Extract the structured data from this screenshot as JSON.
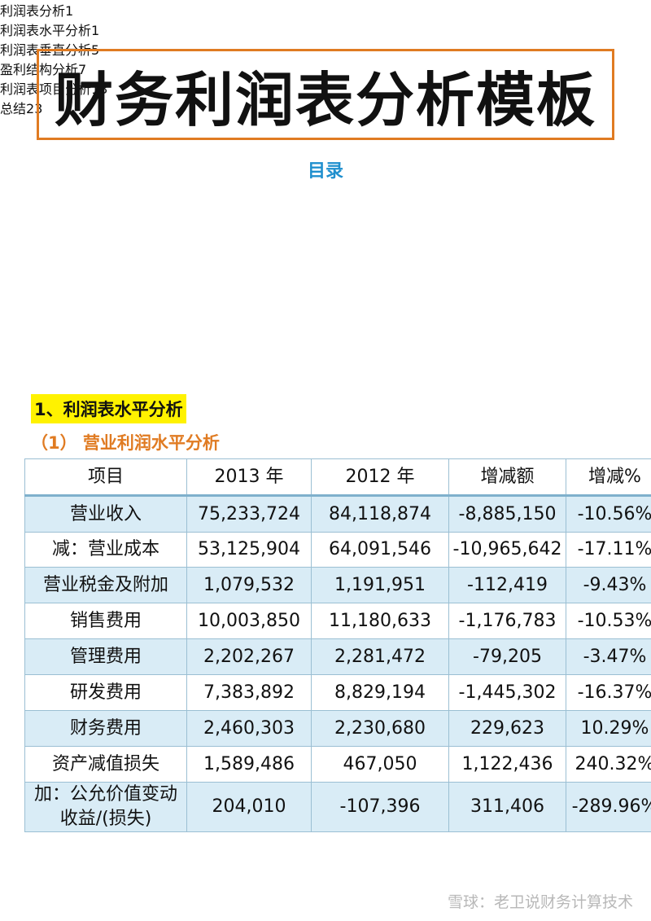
{
  "title": "财务利润表分析模板",
  "toc": {
    "heading": "目录",
    "items": [
      {
        "label": "利润表分析",
        "page": 1
      },
      {
        "label": "利润表水平分析",
        "page": 1
      },
      {
        "label": "利润表垂直分析",
        "page": 5
      },
      {
        "label": "盈利结构分析",
        "page": 7
      },
      {
        "label": "利润表项目分析",
        "page": 13
      },
      {
        "label": "总结",
        "page": 23
      }
    ]
  },
  "section": {
    "heading": "1、利润表水平分析",
    "subheading": "（1）  营业利润水平分析"
  },
  "table": {
    "header": [
      "项目",
      "2013 年",
      "2012 年",
      "增减额",
      "增减%"
    ],
    "rows": [
      [
        "营业收入",
        "75,233,724",
        "84,118,874",
        "-8,885,150",
        "-10.56%"
      ],
      [
        "减：营业成本",
        "53,125,904",
        "64,091,546",
        "-10,965,642",
        "-17.11%"
      ],
      [
        "营业税金及附加",
        "1,079,532",
        "1,191,951",
        "-112,419",
        "-9.43%"
      ],
      [
        "销售费用",
        "10,003,850",
        "11,180,633",
        "-1,176,783",
        "-10.53%"
      ],
      [
        "管理费用",
        "2,202,267",
        "2,281,472",
        "-79,205",
        "-3.47%"
      ],
      [
        "研发费用",
        "7,383,892",
        "8,829,194",
        "-1,445,302",
        "-16.37%"
      ],
      [
        "财务费用",
        "2,460,303",
        "2,230,680",
        "229,623",
        "10.29%"
      ],
      [
        "资产减值损失",
        "1,589,486",
        "467,050",
        "1,122,436",
        "240.32%"
      ],
      [
        "加：公允价值变动收益/(损失)",
        "204,010",
        "-107,396",
        "311,406",
        "-289.96%"
      ]
    ]
  },
  "watermark": "雪球：老卫说财务计算技术"
}
